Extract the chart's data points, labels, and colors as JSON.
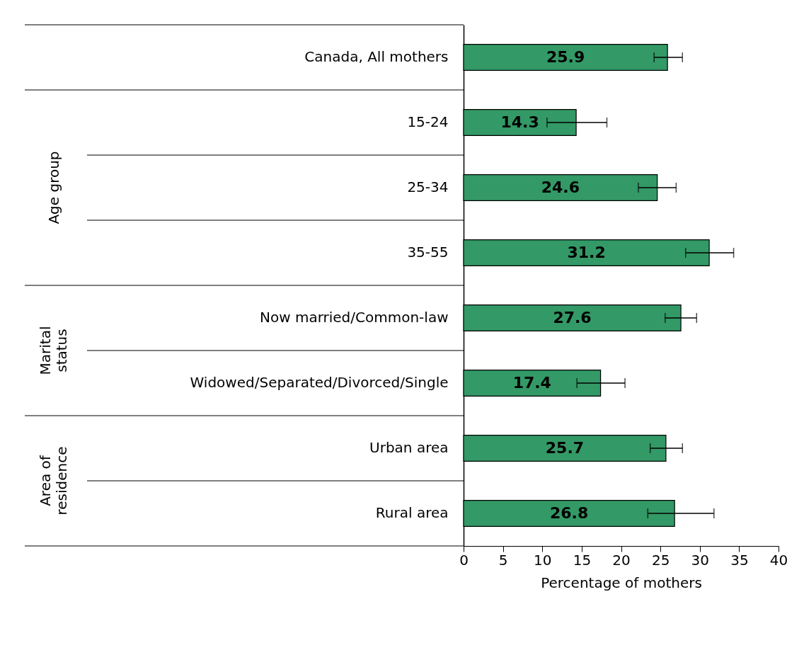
{
  "chart_data": {
    "type": "bar",
    "orientation": "horizontal",
    "xlabel": "Percentage of mothers",
    "categories": [
      "Canada, All mothers",
      "15-24",
      "25-34",
      "35-55",
      "Now married/Common-law",
      "Widowed/Separated/Divorced/Single",
      "Urban area",
      "Rural area"
    ],
    "values": [
      25.9,
      14.3,
      24.6,
      31.2,
      27.6,
      17.4,
      25.7,
      26.8
    ],
    "errors": [
      [
        24.2,
        27.8
      ],
      [
        10.6,
        18.2
      ],
      [
        22.2,
        27.0
      ],
      [
        28.2,
        34.3
      ],
      [
        25.6,
        29.6
      ],
      [
        14.4,
        20.5
      ],
      [
        23.7,
        27.8
      ],
      [
        23.4,
        31.8
      ]
    ],
    "color": "#339966",
    "data_labels": true,
    "xlim": [
      0,
      40
    ],
    "xticks": [
      0,
      5,
      10,
      15,
      20,
      25,
      30,
      35,
      40
    ],
    "grid": false,
    "annotations": [
      "Age group",
      "Marital status",
      "Area of residence"
    ]
  }
}
